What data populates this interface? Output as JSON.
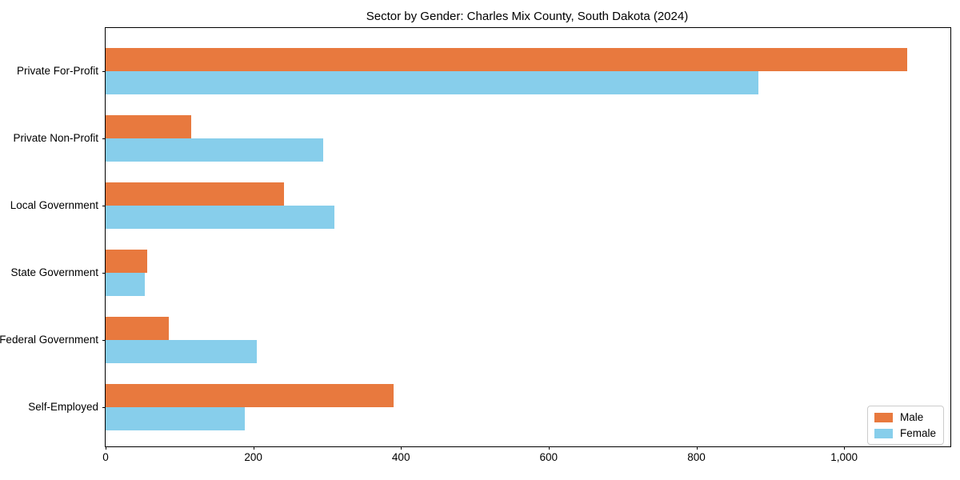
{
  "chart_data": {
    "type": "bar",
    "orientation": "horizontal",
    "title": "Sector by Gender: Charles Mix County, South Dakota (2024)",
    "categories": [
      "Private For-Profit",
      "Private Non-Profit",
      "Local Government",
      "State Government",
      "Federal Government",
      "Self-Employed"
    ],
    "series": [
      {
        "name": "Male",
        "color": "#E8793E",
        "values": [
          1085,
          116,
          242,
          56,
          86,
          390
        ]
      },
      {
        "name": "Female",
        "color": "#87CEEB",
        "values": [
          884,
          295,
          310,
          53,
          205,
          188
        ]
      }
    ],
    "xlabel": "",
    "ylabel": "",
    "xlim": [
      0,
      1144
    ],
    "xticks": [
      0,
      200,
      400,
      600,
      800,
      1000
    ],
    "xtick_labels": [
      "0",
      "200",
      "400",
      "600",
      "800",
      "1,000"
    ],
    "grid": false,
    "legend": {
      "position": "lower right",
      "labels": [
        "Male",
        "Female"
      ]
    },
    "colors": {
      "axis": "#000000",
      "text": "#000000",
      "legend_border": "#cccccc",
      "background": "#ffffff"
    }
  }
}
